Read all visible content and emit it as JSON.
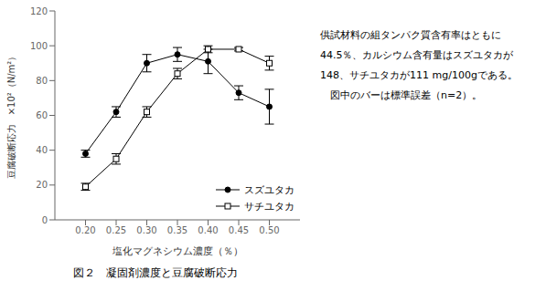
{
  "chart_data": {
    "type": "line",
    "title": "図２　凝固剤濃度と豆腐破断応力",
    "xlabel": "塩化マグネシウム濃度（％）",
    "ylabel": "豆腐破断応力　×10²（N/m²）",
    "x": [
      0.2,
      0.25,
      0.3,
      0.35,
      0.4,
      0.45,
      0.5
    ],
    "series": [
      {
        "name": "スズユタカ",
        "color": "#000000",
        "marker": "circle",
        "values": [
          38,
          62,
          90,
          95,
          91,
          73,
          65
        ],
        "errors": [
          2,
          3,
          5,
          4,
          7,
          4,
          10
        ]
      },
      {
        "name": "サチユタカ",
        "color": "#000000",
        "marker": "open_square",
        "values": [
          19,
          35,
          62,
          84,
          98,
          98,
          90
        ],
        "errors": [
          2,
          3,
          3,
          3,
          2,
          1,
          4
        ]
      }
    ],
    "xlim": [
      0.15,
      0.55
    ],
    "ylim": [
      0,
      120
    ],
    "xticks": [
      {
        "value": 0.2,
        "label": "0.20"
      },
      {
        "value": 0.25,
        "label": "0.25"
      },
      {
        "value": 0.3,
        "label": "0.30"
      },
      {
        "value": 0.35,
        "label": "0.35"
      },
      {
        "value": 0.4,
        "label": "0.40"
      },
      {
        "value": 0.45,
        "label": "0.45"
      },
      {
        "value": 0.5,
        "label": "0.50"
      }
    ],
    "yticks": [
      0,
      20,
      40,
      60,
      80,
      100,
      120
    ],
    "legend": "lower right",
    "grid": false,
    "annotations": [
      "供試材料の組タンパク質含有率はともに",
      "44.5％、カルシウム含有量はスズユタカが",
      "148、サチユタカが111 mg/100gである。",
      "　図中のバーは標準誤差（n=2）。"
    ]
  }
}
